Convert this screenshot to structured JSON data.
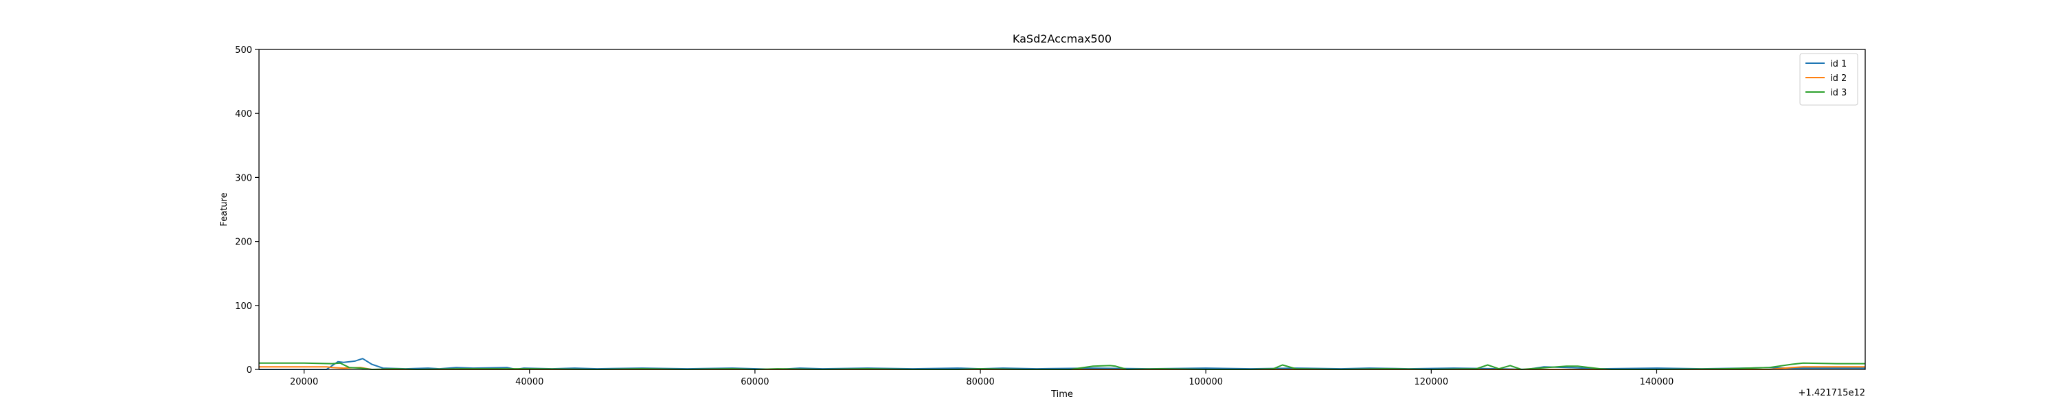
{
  "chart_data": {
    "type": "line",
    "title": "KaSd2Accmax500",
    "xlabel": "Time",
    "ylabel": "Feature",
    "x_offset_label": "+1.421715e12",
    "xlim": [
      16000,
      158500
    ],
    "ylim": [
      0,
      500
    ],
    "xticks": [
      20000,
      40000,
      60000,
      80000,
      100000,
      120000,
      140000
    ],
    "xtick_labels": [
      "20000",
      "40000",
      "60000",
      "80000",
      "100000",
      "120000",
      "140000"
    ],
    "yticks": [
      0,
      100,
      200,
      300,
      400,
      500
    ],
    "ytick_labels": [
      "0",
      "100",
      "200",
      "300",
      "400",
      "500"
    ],
    "grid": false,
    "legend_position": "top-right",
    "series": [
      {
        "name": "id 1",
        "color": "#1f77b4",
        "x": [
          16000,
          22000,
          23000,
          23500,
          24500,
          25200,
          26000,
          27000,
          29000,
          31000,
          32000,
          33500,
          35000,
          38000,
          38800,
          39500,
          42000,
          44000,
          46000,
          50000,
          54000,
          58000,
          62000,
          64000,
          66000,
          70000,
          74000,
          78000,
          80000,
          82000,
          85000,
          90000,
          95000,
          100000,
          104000,
          108000,
          112000,
          114500,
          118000,
          122000,
          126000,
          128500,
          130000,
          132000,
          135000,
          140000,
          144000,
          148000,
          150000,
          151500,
          158500
        ],
        "y": [
          0,
          0,
          12,
          11,
          13,
          17,
          8,
          2,
          1,
          2,
          1,
          3,
          2,
          3,
          0,
          2,
          1,
          2,
          1,
          2,
          1,
          2,
          0,
          2,
          1,
          2,
          1,
          2,
          1,
          2,
          1,
          2,
          1,
          2,
          1,
          2,
          1,
          2,
          1,
          2,
          1,
          0,
          4,
          3,
          1,
          2,
          1,
          2,
          3,
          2,
          2
        ]
      },
      {
        "name": "id 2",
        "color": "#ff7f0e",
        "x": [
          16000,
          22000,
          22500,
          23500,
          25000,
          26000,
          40000,
          80000,
          120000,
          150000,
          152000,
          153000,
          158500
        ],
        "y": [
          4,
          4,
          3,
          2,
          3,
          0,
          0,
          0,
          0,
          0,
          3,
          4,
          4
        ]
      },
      {
        "name": "id 3",
        "color": "#2ca02c",
        "x": [
          16000,
          20000,
          22500,
          23200,
          24000,
          25000,
          26000,
          28000,
          30000,
          34000,
          40000,
          46000,
          50000,
          54000,
          58000,
          60000,
          62000,
          66000,
          70000,
          74000,
          78000,
          80000,
          84000,
          88000,
          90000,
          91500,
          92000,
          93000,
          96000,
          100000,
          104000,
          106000,
          106800,
          108000,
          112000,
          116000,
          120000,
          124000,
          125000,
          126000,
          127000,
          128000,
          132000,
          133000,
          135000,
          136000,
          140000,
          146000,
          150000,
          152000,
          153000,
          156000,
          158500
        ],
        "y": [
          10,
          10,
          9,
          10,
          3,
          2,
          0,
          1,
          0,
          1,
          1,
          0,
          1,
          0,
          1,
          0,
          1,
          0,
          1,
          0,
          0,
          1,
          0,
          0,
          5,
          6,
          5,
          0,
          1,
          0,
          0,
          1,
          7,
          1,
          0,
          1,
          0,
          1,
          7,
          1,
          6,
          0,
          5,
          5,
          1,
          0,
          0,
          1,
          3,
          8,
          10,
          9,
          9
        ]
      }
    ]
  }
}
